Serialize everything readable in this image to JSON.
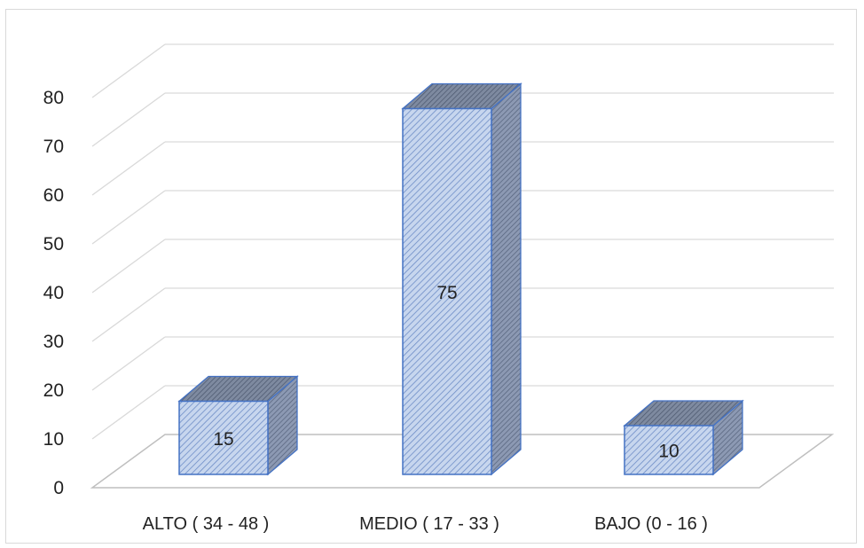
{
  "chart_data": {
    "type": "bar",
    "style": "3d-column",
    "categories": [
      "ALTO ( 34 - 48 )",
      "MEDIO ( 17 - 33 )",
      "BAJO (0 - 16 )"
    ],
    "values": [
      15,
      75,
      10
    ],
    "data_labels": [
      "15",
      "75",
      "10"
    ],
    "ylim": [
      0,
      80
    ],
    "yticks": [
      "0",
      "10",
      "20",
      "30",
      "40",
      "50",
      "60",
      "70",
      "80"
    ],
    "grid": true,
    "legend": "none",
    "title": "",
    "xlabel": "",
    "ylabel": "",
    "colors": {
      "bar_fill": "#c7d6ee",
      "bar_hatch": "#4f74b8",
      "bar_side": "#8c99b3",
      "bar_top": "#7e8aa0",
      "bar_edge": "#4472c4",
      "grid": "#d9d9d9"
    }
  }
}
